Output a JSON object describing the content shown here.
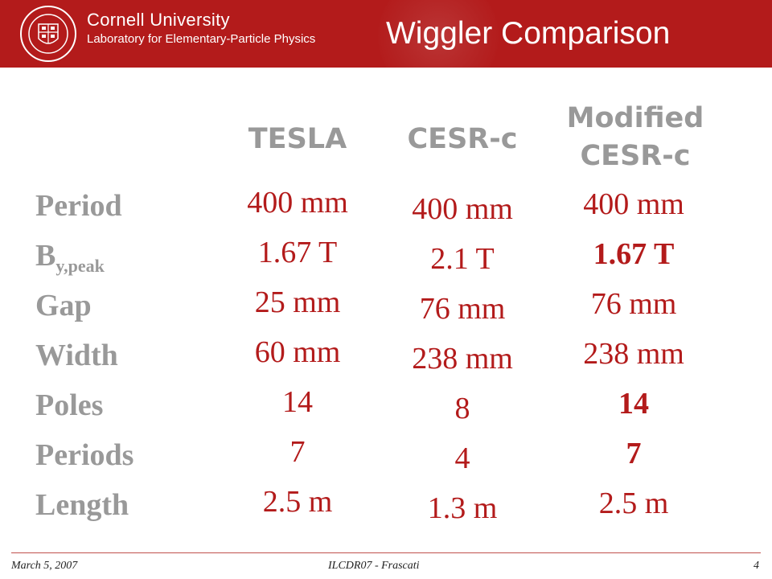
{
  "header": {
    "university": "Cornell University",
    "laboratory": "Laboratory for Elementary-Particle Physics",
    "title": "Wiggler Comparison",
    "seal_icon": "cornell-seal-icon",
    "color": "#b31b1b"
  },
  "table": {
    "columns": [
      "TESLA",
      "CESR-c",
      "Modified\nCESR-c"
    ],
    "rows": [
      {
        "label": "Period",
        "sub": "",
        "values": [
          "400 mm",
          "400 mm",
          "400 mm"
        ]
      },
      {
        "label": "B",
        "sub": "y,peak",
        "values": [
          "1.67 T",
          "2.1 T",
          "1.67 T"
        ]
      },
      {
        "label": "Gap",
        "sub": "",
        "values": [
          "25 mm",
          "76 mm",
          "76 mm"
        ]
      },
      {
        "label": "Width",
        "sub": "",
        "values": [
          "60 mm",
          "238 mm",
          "238 mm"
        ]
      },
      {
        "label": "Poles",
        "sub": "",
        "values": [
          "14",
          "8",
          "14"
        ]
      },
      {
        "label": "Periods",
        "sub": "",
        "values": [
          "7",
          "4",
          "7"
        ]
      },
      {
        "label": "Length",
        "sub": "",
        "values": [
          "2.5 m",
          "1.3 m",
          "2.5 m"
        ]
      }
    ],
    "highlighted_cells": [
      [
        1,
        2
      ],
      [
        4,
        2
      ],
      [
        5,
        2
      ]
    ],
    "label_color": "#999999",
    "value_color": "#b31b1b"
  },
  "footer": {
    "date": "March 5, 2007",
    "event": "ILCDR07 - Frascati",
    "page": "4"
  }
}
